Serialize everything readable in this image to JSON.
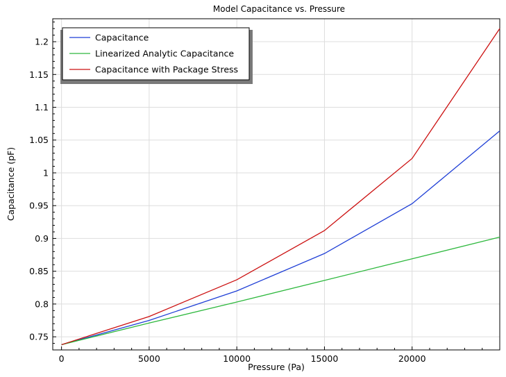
{
  "chart_data": {
    "type": "line",
    "title": "Model Capacitance vs. Pressure",
    "xlabel": "Pressure (Pa)",
    "ylabel": "Capacitance (pF)",
    "xlim": [
      -500,
      25000
    ],
    "ylim": [
      0.73,
      1.235
    ],
    "xticks": [
      0,
      5000,
      10000,
      15000,
      20000
    ],
    "yticks": [
      0.75,
      0.8,
      0.85,
      0.9,
      0.95,
      1,
      1.05,
      1.1,
      1.15,
      1.2
    ],
    "grid": true,
    "legend_position": "top-left",
    "x": [
      0,
      5000,
      10000,
      15000,
      20000,
      25000
    ],
    "series": [
      {
        "name": "Capacitance",
        "color": "#1f3fd6",
        "values": [
          0.738,
          0.775,
          0.82,
          0.877,
          0.953,
          1.064
        ]
      },
      {
        "name": "Linearized Analytic Capacitance",
        "color": "#2db83d",
        "values": [
          0.738,
          0.771,
          0.803,
          0.836,
          0.869,
          0.902
        ]
      },
      {
        "name": "Capacitance with Package Stress",
        "color": "#cc1111",
        "values": [
          0.738,
          0.781,
          0.837,
          0.912,
          1.022,
          1.22
        ]
      }
    ]
  }
}
